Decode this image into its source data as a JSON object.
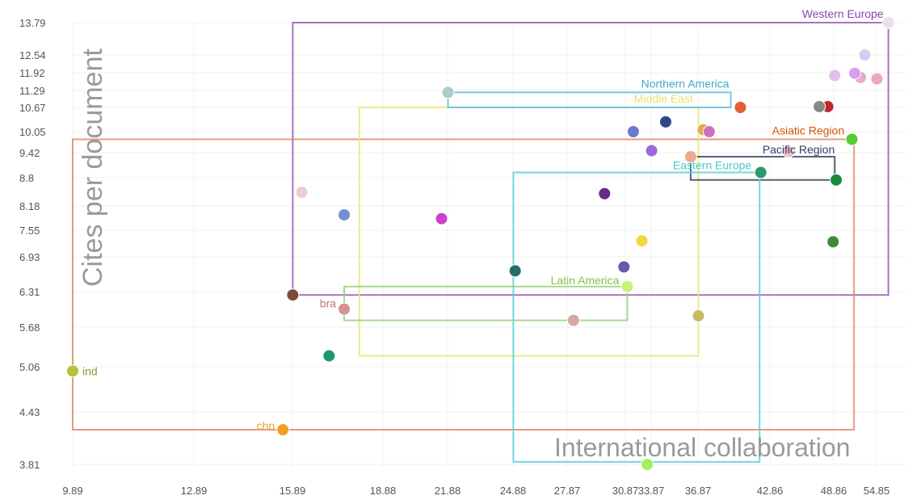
{
  "chart_data": {
    "type": "scatter",
    "title": "",
    "xlabel": "International collaboration",
    "ylabel": "Cites per document",
    "x_ticks": [
      "9.89",
      "12.89",
      "15.89",
      "18.88",
      "21.88",
      "24.88",
      "27.87",
      "30.87",
      "33.87",
      "36.87",
      "42.86",
      "48.86",
      "54.85"
    ],
    "y_ticks": [
      "13.79",
      "12.54",
      "11.92",
      "11.29",
      "10.67",
      "10.05",
      "9.42",
      "8.8",
      "8.18",
      "7.55",
      "6.93",
      "6.31",
      "5.68",
      "5.06",
      "4.43",
      "3.81"
    ],
    "xlim": [
      9.89,
      57.0
    ],
    "ylim": [
      3.7,
      13.95
    ],
    "grid": true,
    "regions": [
      {
        "name": "Western Europe",
        "color": "#9b59b6",
        "x0": 15.9,
        "x1": 56.5,
        "y0": 6.25,
        "y1": 13.79
      },
      {
        "name": "Asiatic Region",
        "color": "#e08a6a",
        "x0": 9.89,
        "x1": 51.7,
        "y0": 4.22,
        "y1": 9.82
      },
      {
        "name": "Middle East",
        "color": "#e8e87a",
        "x0": 18.1,
        "x1": 36.9,
        "y0": 5.23,
        "y1": 10.67
      },
      {
        "name": "Northern America",
        "color": "#5bc0de",
        "x0": 21.9,
        "x1": 39.6,
        "y0": 10.67,
        "y1": 11.22
      },
      {
        "name": "Pacific Region",
        "color": "#34495e",
        "x0": 36.4,
        "x1": 49.0,
        "y0": 8.75,
        "y1": 9.32
      },
      {
        "name": "Eastern Europe",
        "color": "#5bd0d8",
        "x0": 24.9,
        "x1": 42.0,
        "y0": 3.84,
        "y1": 8.93
      },
      {
        "name": "Latin America",
        "color": "#9ad07a",
        "x0": 17.6,
        "x1": 31.1,
        "y0": 5.8,
        "y1": 6.4
      }
    ],
    "region_label_colors": {
      "Western Europe": "#8e44ad",
      "Northern America": "#3fa9c9",
      "Middle East": "#e8e070",
      "Asiatic Region": "#d35400",
      "Pacific Region": "#2c3e70",
      "Eastern Europe": "#48c9c9",
      "Latin America": "#7cc04a"
    },
    "points": [
      {
        "x": 56.5,
        "y": 13.79,
        "color": "#e8e0ef"
      },
      {
        "x": 53.2,
        "y": 12.54,
        "color": "#d7cdf0"
      },
      {
        "x": 52.6,
        "y": 11.75,
        "color": "#e8a8d0"
      },
      {
        "x": 54.9,
        "y": 11.7,
        "color": "#f0a8b8"
      },
      {
        "x": 51.8,
        "y": 11.9,
        "color": "#d6a0e6"
      },
      {
        "x": 49.0,
        "y": 11.82,
        "color": "#e0c0e8"
      },
      {
        "x": 48.3,
        "y": 10.7,
        "color": "#c0282c"
      },
      {
        "x": 47.5,
        "y": 10.7,
        "color": "#888888"
      },
      {
        "x": 51.4,
        "y": 9.82,
        "color": "#55cc33"
      },
      {
        "x": 49.2,
        "y": 8.75,
        "color": "#1a8a3a"
      },
      {
        "x": 48.8,
        "y": 7.28,
        "color": "#3a8a3a"
      },
      {
        "x": 44.6,
        "y": 9.45,
        "color": "#f0c0c0"
      },
      {
        "x": 40.4,
        "y": 10.67,
        "color": "#e06030"
      },
      {
        "x": 42.1,
        "y": 8.93,
        "color": "#2a9a6a"
      },
      {
        "x": 37.3,
        "y": 10.1,
        "color": "#e8a850"
      },
      {
        "x": 37.8,
        "y": 10.05,
        "color": "#d070c0"
      },
      {
        "x": 34.8,
        "y": 10.3,
        "color": "#2a4a8a"
      },
      {
        "x": 36.4,
        "y": 9.32,
        "color": "#f0a890"
      },
      {
        "x": 33.9,
        "y": 9.48,
        "color": "#9a6ad6"
      },
      {
        "x": 31.8,
        "y": 10.05,
        "color": "#6a7ad0"
      },
      {
        "x": 29.8,
        "y": 8.45,
        "color": "#6a2a8a"
      },
      {
        "x": 32.8,
        "y": 7.3,
        "color": "#f0d840"
      },
      {
        "x": 30.8,
        "y": 6.75,
        "color": "#6a58a8"
      },
      {
        "x": 31.1,
        "y": 6.4,
        "color": "#c8f07a"
      },
      {
        "x": 36.9,
        "y": 5.88,
        "color": "#c8b860"
      },
      {
        "x": 28.2,
        "y": 5.8,
        "color": "#d8a8a0"
      },
      {
        "x": 25.0,
        "y": 6.68,
        "color": "#2a6a6a"
      },
      {
        "x": 21.9,
        "y": 11.22,
        "color": "#a8d0c8"
      },
      {
        "x": 21.6,
        "y": 7.85,
        "color": "#d040d0"
      },
      {
        "x": 17.6,
        "y": 7.95,
        "color": "#7090d0"
      },
      {
        "x": 16.2,
        "y": 8.48,
        "color": "#f0c8d8"
      },
      {
        "x": 15.9,
        "y": 6.25,
        "color": "#7a4a40"
      },
      {
        "x": 17.6,
        "y": 6.0,
        "color": "#d89090"
      },
      {
        "x": 17.1,
        "y": 5.23,
        "color": "#1a9a6a"
      },
      {
        "x": 15.6,
        "y": 4.22,
        "color": "#f0a020"
      },
      {
        "x": 9.89,
        "y": 5.0,
        "color": "#b8c040"
      },
      {
        "x": 33.4,
        "y": 3.81,
        "color": "#a0f060"
      }
    ],
    "point_labels": [
      {
        "text": "ind",
        "x": 9.89,
        "y": 5.0,
        "color": "#8a9a2a"
      },
      {
        "text": "bra",
        "x": 17.6,
        "y": 6.0,
        "color": "#c07878"
      },
      {
        "text": "chn",
        "x": 15.6,
        "y": 4.22,
        "color": "#f0a020"
      }
    ]
  }
}
